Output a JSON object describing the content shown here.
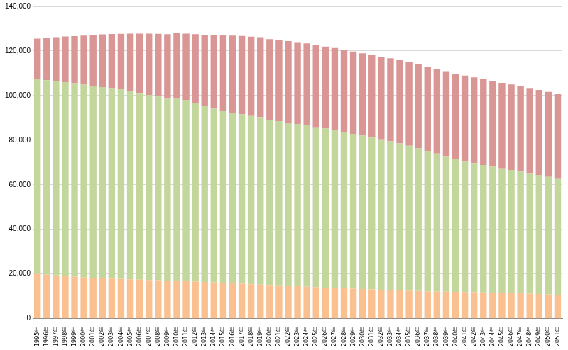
{
  "chart_data": {
    "type": "bar",
    "stacked": true,
    "grid": true,
    "categories": [
      "1995年",
      "1996年",
      "1997年",
      "1998年",
      "1999年",
      "2000年",
      "2001年",
      "2002年",
      "2003年",
      "2004年",
      "2005年",
      "2006年",
      "2007年",
      "2008年",
      "2009年",
      "2010年",
      "2011年",
      "2012年",
      "2013年",
      "2014年",
      "2015年",
      "2016年",
      "2017年",
      "2018年",
      "2019年",
      "2020年",
      "2021年",
      "2022年",
      "2023年",
      "2024年",
      "2025年",
      "2026年",
      "2027年",
      "2028年",
      "2029年",
      "2030年",
      "2031年",
      "2032年",
      "2033年",
      "2034年",
      "2035年",
      "2036年",
      "2037年",
      "2038年",
      "2039年",
      "2040年",
      "2041年",
      "2042年",
      "2043年",
      "2044年",
      "2045年",
      "2046年",
      "2047年",
      "2048年",
      "2049年",
      "2050年",
      "2051年"
    ],
    "series": [
      {
        "color": "#fac090",
        "values": [
          20014,
          19686,
          19366,
          19059,
          18742,
          18505,
          18283,
          18102,
          17905,
          17734,
          17585,
          17435,
          17293,
          17176,
          17011,
          16839,
          16705,
          16547,
          16390,
          16233,
          15950,
          15780,
          15590,
          15410,
          15210,
          15070,
          14900,
          14710,
          14510,
          14300,
          14080,
          13880,
          13690,
          13510,
          13350,
          13210,
          13060,
          12920,
          12780,
          12620,
          12460,
          12330,
          12210,
          12100,
          12010,
          11940,
          11870,
          11800,
          11720,
          11630,
          11530,
          11420,
          11290,
          11150,
          11000,
          10840,
          10680
        ]
      },
      {
        "color": "#c3d69b",
        "values": [
          87260,
          87164,
          87042,
          86920,
          86758,
          86380,
          86139,
          85706,
          85404,
          85077,
          84422,
          83731,
          83015,
          82300,
          81500,
          81700,
          81342,
          80175,
          79010,
          77850,
          77282,
          76560,
          75960,
          75450,
          75070,
          74060,
          73640,
          73200,
          72780,
          72380,
          71700,
          71300,
          70800,
          70250,
          69500,
          68800,
          68100,
          67400,
          66700,
          65900,
          65000,
          64000,
          63000,
          61900,
          60800,
          59600,
          58700,
          57900,
          57100,
          56400,
          55800,
          55200,
          54600,
          54000,
          53400,
          52700,
          52200
        ]
      },
      {
        "color": "#d99694",
        "values": [
          18261,
          19017,
          19758,
          20508,
          21186,
          22005,
          22869,
          23628,
          24311,
          24876,
          25761,
          26604,
          27464,
          28216,
          29005,
          29484,
          29752,
          30793,
          31898,
          33000,
          33868,
          34590,
          35150,
          35580,
          35890,
          36200,
          36400,
          36550,
          36650,
          36720,
          36770,
          36820,
          36850,
          36880,
          36910,
          36960,
          37030,
          37120,
          37230,
          37360,
          37500,
          37650,
          37810,
          37980,
          38150,
          38300,
          38400,
          38450,
          38460,
          38430,
          38380,
          38320,
          38260,
          38200,
          38140,
          38080,
          38000
        ]
      }
    ],
    "ylim": [
      0,
      140000
    ],
    "yticks": [
      {
        "value": 0,
        "label": "0"
      },
      {
        "value": 20000,
        "label": "20,000"
      },
      {
        "value": 40000,
        "label": "40,000"
      },
      {
        "value": 60000,
        "label": "60,000"
      },
      {
        "value": 80000,
        "label": "80,000"
      },
      {
        "value": 100000,
        "label": "100,000"
      },
      {
        "value": 120000,
        "label": "120,000"
      },
      {
        "value": 140000,
        "label": "140,000"
      }
    ]
  }
}
